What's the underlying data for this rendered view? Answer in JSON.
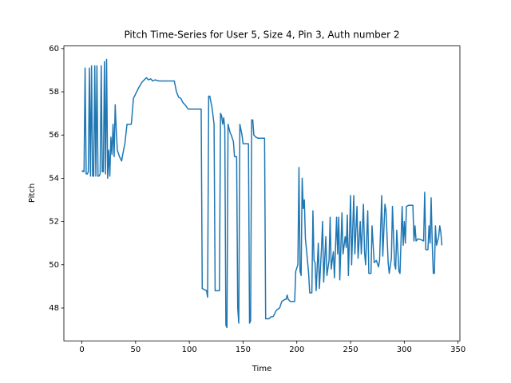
{
  "chart_data": {
    "type": "line",
    "title": "Pitch Time-Series for User 5, Size 4, Pin 3, Auth number 2",
    "xlabel": "Time",
    "ylabel": "Pitch",
    "color": "#1f77b4",
    "xlim": [
      -16.75,
      351.75
    ],
    "ylim": [
      46.48,
      60.12
    ],
    "xticks": [
      0,
      50,
      100,
      150,
      200,
      250,
      300,
      350
    ],
    "yticks": [
      48,
      50,
      52,
      54,
      56,
      58,
      60
    ],
    "x": [
      0,
      1,
      2,
      3,
      4,
      5,
      6,
      7,
      8,
      9,
      10,
      11,
      12,
      13,
      14,
      15,
      16,
      17,
      18,
      19,
      20,
      21,
      22,
      23,
      24,
      25,
      26,
      27,
      28,
      29,
      30,
      31,
      32,
      33,
      35,
      37,
      38,
      40,
      42,
      46,
      48,
      50,
      53,
      56,
      60,
      62,
      64,
      66,
      68,
      72,
      78,
      86,
      88,
      90,
      92,
      94,
      96,
      99,
      104,
      111,
      112,
      116,
      117,
      118,
      119,
      121,
      123,
      124,
      128,
      129,
      130,
      131,
      132,
      133,
      134,
      135,
      136,
      138,
      139,
      141,
      142,
      144,
      145,
      146,
      147,
      149,
      150,
      155,
      156,
      157,
      158,
      159,
      160,
      162,
      164,
      170,
      171,
      174,
      176,
      178,
      181,
      184,
      186,
      189,
      190,
      191,
      192,
      194,
      198,
      199,
      201,
      202,
      203,
      204,
      205,
      206,
      207,
      208,
      209,
      211,
      212,
      214,
      215,
      216,
      217,
      218,
      220,
      221,
      223,
      224,
      225,
      227,
      228,
      230,
      231,
      232,
      234,
      235,
      237,
      238,
      239,
      240,
      242,
      243,
      245,
      246,
      247,
      248,
      250,
      251,
      253,
      254,
      256,
      257,
      259,
      260,
      262,
      263,
      264,
      266,
      267,
      269,
      270,
      272,
      274,
      276,
      277,
      279,
      280,
      282,
      283,
      285,
      286,
      288,
      289,
      291,
      292,
      293,
      295,
      296,
      298,
      299,
      300,
      301,
      302,
      304,
      308,
      309,
      310,
      311,
      313,
      316,
      318,
      319,
      320,
      322,
      323,
      324,
      325,
      326,
      327,
      328,
      329,
      330,
      332,
      333,
      334,
      335
    ],
    "values": [
      54.3,
      54.35,
      54.3,
      59.1,
      54.2,
      54.2,
      54.3,
      59.1,
      54.1,
      59.2,
      54.1,
      54.1,
      59.2,
      54.1,
      59.2,
      54.1,
      54.1,
      54.2,
      59.2,
      54.3,
      54.3,
      59.4,
      54.2,
      59.5,
      54.0,
      55.3,
      54.1,
      55.9,
      55.1,
      56.5,
      55.0,
      57.4,
      56.2,
      55.3,
      55.0,
      54.8,
      55.1,
      55.6,
      56.5,
      56.5,
      57.7,
      57.9,
      58.2,
      58.45,
      58.65,
      58.55,
      58.6,
      58.5,
      58.55,
      58.5,
      58.5,
      58.5,
      58.0,
      57.75,
      57.7,
      57.5,
      57.4,
      57.2,
      57.2,
      57.2,
      48.9,
      48.8,
      48.5,
      57.8,
      57.8,
      57.3,
      56.5,
      48.8,
      48.8,
      57.0,
      56.9,
      56.5,
      56.8,
      56.3,
      47.2,
      47.1,
      56.5,
      56.1,
      56.0,
      55.7,
      55.0,
      55.0,
      48.0,
      47.3,
      56.5,
      56.0,
      55.6,
      55.6,
      47.3,
      47.4,
      56.7,
      56.7,
      56.0,
      55.9,
      55.85,
      55.85,
      47.5,
      47.5,
      47.6,
      47.6,
      47.9,
      48.0,
      48.3,
      48.4,
      48.4,
      48.6,
      48.4,
      48.3,
      48.3,
      49.7,
      50.0,
      54.5,
      49.7,
      49.5,
      54.0,
      52.6,
      53.0,
      51.2,
      50.7,
      49.6,
      48.7,
      48.7,
      52.5,
      50.2,
      50.1,
      48.8,
      51.0,
      48.9,
      50.8,
      52.0,
      49.2,
      51.3,
      49.5,
      50.2,
      52.2,
      49.8,
      50.6,
      49.4,
      52.2,
      50.5,
      52.2,
      49.3,
      52.4,
      50.5,
      51.3,
      50.8,
      52.3,
      49.5,
      53.2,
      50.0,
      53.2,
      50.5,
      52.7,
      50.3,
      52.0,
      50.5,
      52.8,
      50.6,
      50.0,
      52.5,
      49.6,
      49.6,
      51.8,
      50.1,
      50.2,
      49.9,
      50.2,
      53.2,
      50.4,
      52.8,
      52.5,
      50.1,
      49.6,
      50.3,
      52.7,
      50.0,
      49.8,
      51.6,
      49.7,
      49.6,
      52.7,
      50.9,
      52.0,
      51.0,
      52.7,
      52.75,
      52.75,
      51.1,
      51.8,
      51.1,
      51.2,
      51.15,
      51.1,
      53.35,
      50.7,
      50.7,
      51.8,
      51.0,
      53.1,
      51.0,
      49.6,
      49.6,
      51.8,
      50.9,
      51.3,
      51.8,
      51.5,
      50.9
    ]
  }
}
